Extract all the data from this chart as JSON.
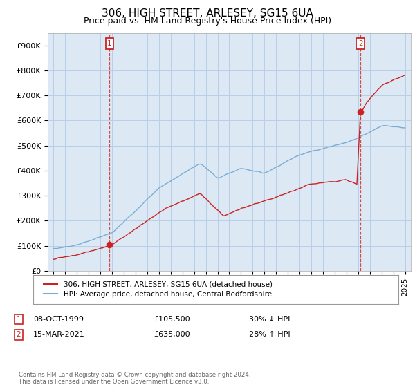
{
  "title": "306, HIGH STREET, ARLESEY, SG15 6UA",
  "subtitle": "Price paid vs. HM Land Registry's House Price Index (HPI)",
  "ylim": [
    0,
    950000
  ],
  "yticks": [
    0,
    100000,
    200000,
    300000,
    400000,
    500000,
    600000,
    700000,
    800000,
    900000
  ],
  "ytick_labels": [
    "£0",
    "£100K",
    "£200K",
    "£300K",
    "£400K",
    "£500K",
    "£600K",
    "£700K",
    "£800K",
    "£900K"
  ],
  "xlim": [
    1994.5,
    2025.5
  ],
  "hpi_color": "#7aadd4",
  "price_color": "#cc2222",
  "sale1_x": 1999.78,
  "sale1_y": 105500,
  "sale2_x": 2021.21,
  "sale2_y": 635000,
  "legend_entries": [
    "306, HIGH STREET, ARLESEY, SG15 6UA (detached house)",
    "HPI: Average price, detached house, Central Bedfordshire"
  ],
  "annotation1": {
    "label": "1",
    "date": "08-OCT-1999",
    "price": "£105,500",
    "pct": "30% ↓ HPI"
  },
  "annotation2": {
    "label": "2",
    "date": "15-MAR-2021",
    "price": "£635,000",
    "pct": "28% ↑ HPI"
  },
  "footnote": "Contains HM Land Registry data © Crown copyright and database right 2024.\nThis data is licensed under the Open Government Licence v3.0.",
  "bg_color": "#ffffff",
  "plot_bg_color": "#dce9f5",
  "grid_color": "#b8cfe8",
  "title_fontsize": 11,
  "subtitle_fontsize": 9
}
